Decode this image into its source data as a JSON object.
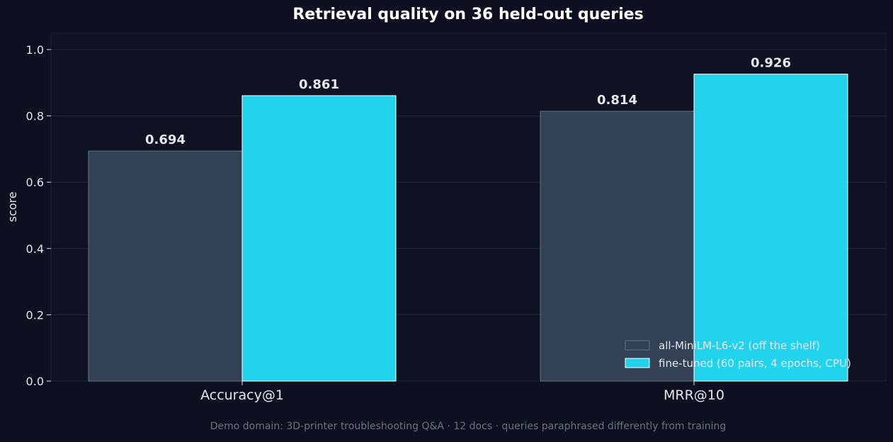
{
  "chart_data": {
    "type": "bar",
    "title": "Retrieval quality on 36 held-out queries",
    "ylabel": "score",
    "xlabel": "",
    "categories": [
      "Accuracy@1",
      "MRR@10"
    ],
    "series": [
      {
        "name": "all-MiniLM-L6-v2 (off the shelf)",
        "values": [
          0.694,
          0.814
        ],
        "labels": [
          "0.694",
          "0.814"
        ],
        "color": "#334155",
        "stroke": "#64748b"
      },
      {
        "name": "fine-tuned (60 pairs, 4 epochs, CPU)",
        "values": [
          0.861,
          0.926
        ],
        "labels": [
          "0.861",
          "0.926"
        ],
        "color": "#22d3ee",
        "stroke": "#ffffff"
      }
    ],
    "ylim": [
      0,
      1.05
    ],
    "yticks": [
      0.0,
      0.2,
      0.4,
      0.6,
      0.8,
      1.0
    ],
    "ytick_labels": [
      "0.0",
      "0.2",
      "0.4",
      "0.6",
      "0.8",
      "1.0"
    ],
    "grid": true,
    "legend_position": "bottom-right",
    "caption": "Demo domain: 3D-printer troubleshooting Q&A · 12 docs · queries paraphrased differently from training"
  },
  "colors": {
    "background": "#0c1020",
    "plot_background": "#0e1222",
    "grid": "#1f2740",
    "text": "#e5e7eb",
    "caption": "#6b7280"
  }
}
